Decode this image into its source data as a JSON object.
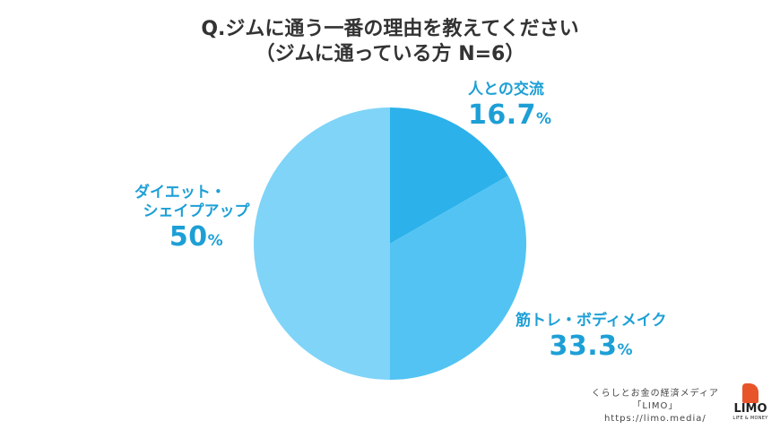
{
  "header": {
    "title_line1": "Q.ジムに通う一番の理由を教えてください",
    "title_line2": "（ジムに通っている方 N=6）"
  },
  "chart_data": {
    "type": "pie",
    "title": "Q.ジムに通う一番の理由を教えてください",
    "subtitle": "（ジムに通っている方 N=6）",
    "categories": [
      "人との交流",
      "筋トレ・ボディメイク",
      "ダイエット・シェイプアップ"
    ],
    "values": [
      16.7,
      33.3,
      50
    ],
    "value_labels": [
      "16.7",
      "33.3",
      "50"
    ],
    "unit": "%",
    "colors": [
      "#2cb1ea",
      "#52c3f3",
      "#7fd4f8"
    ],
    "slice_labels": [
      {
        "lines": [
          "人との交流"
        ]
      },
      {
        "lines": [
          "筋トレ・ボディメイク"
        ]
      },
      {
        "lines": [
          "ダイエット・",
          "シェイプアップ"
        ]
      }
    ]
  },
  "footer": {
    "credit_line1": "くらしとお金の経済メディア",
    "credit_line2": "「LIMO」",
    "credit_line3": "https://limo.media/",
    "logo_text": "LIMO",
    "logo_sub": "LIFE & MONEY"
  }
}
